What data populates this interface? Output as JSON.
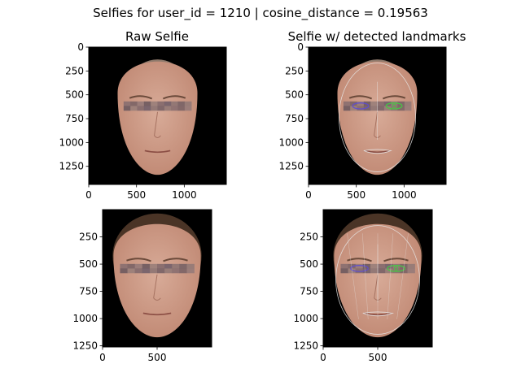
{
  "figure": {
    "suptitle": "Selfies for user_id = 1210 | cosine_distance = 0.19563"
  },
  "colors": {
    "background": "#000000",
    "skin_light": "#d8ab98",
    "skin_dark": "#c08873",
    "hair": "#4a3426",
    "landmark_outline": "#e8e8e8",
    "left_eye_landmarks": "#5c4bd6",
    "right_eye_landmarks": "#3fd13f"
  },
  "chart_data": [
    {
      "type": "image",
      "title": "Raw Selfie",
      "xlim": [
        0,
        1440
      ],
      "ylim": [
        1440,
        0
      ],
      "xticks": [
        0,
        500,
        1000
      ],
      "yticks": [
        0,
        250,
        500,
        750,
        1000,
        1250
      ],
      "content": "face crop on black background",
      "landmarks": false
    },
    {
      "type": "image",
      "title": "Selfie w/ detected landmarks",
      "xlim": [
        0,
        1440
      ],
      "ylim": [
        1440,
        0
      ],
      "xticks": [
        0,
        500,
        1000
      ],
      "yticks": [
        0,
        250,
        500,
        750,
        1000,
        1250
      ],
      "content": "face crop with facial landmark mesh overlay",
      "landmarks": true
    },
    {
      "type": "image",
      "title": "",
      "xlim": [
        0,
        1000
      ],
      "ylim": [
        1260,
        0
      ],
      "xticks": [
        0,
        500
      ],
      "yticks": [
        250,
        500,
        750,
        1000,
        1250
      ],
      "content": "face crop on black background",
      "landmarks": false
    },
    {
      "type": "image",
      "title": "",
      "xlim": [
        0,
        1000
      ],
      "ylim": [
        1260,
        0
      ],
      "xticks": [
        0,
        500
      ],
      "yticks": [
        250,
        500,
        750,
        1000,
        1250
      ],
      "content": "face crop with facial landmark mesh overlay",
      "landmarks": true
    }
  ]
}
